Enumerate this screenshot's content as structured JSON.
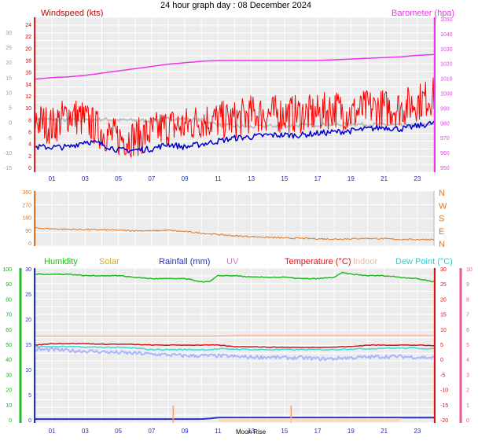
{
  "title": "24 hour graph day : 08 December 2024",
  "colors": {
    "wind_gust": "#ff0000",
    "wind_avg": "#0000cc",
    "wind_dir": "#dd7722",
    "barometer": "#ee33ee",
    "humidity": "#22bb22",
    "solar": "#ccaa33",
    "rainfall": "#2233bb",
    "uv": "#cc77cc",
    "temperature": "#dd1111",
    "indoor": "#f4b8a0",
    "dew_point": "#33dddd",
    "plot_bg": "#ececec",
    "grid": "#ffffff"
  },
  "x_ticks": [
    "01",
    "03",
    "05",
    "07",
    "09",
    "11",
    "13",
    "15",
    "17",
    "19",
    "21",
    "23"
  ],
  "chart_data": [
    {
      "type": "line",
      "name": "wind-barometer",
      "ylabel_left": "Windspeed (kts)",
      "ylabel_right": "Barometer (hpa)",
      "left_ticks": [
        "24",
        "22",
        "20",
        "18",
        "16",
        "14",
        "12",
        "10",
        "8",
        "6",
        "4",
        "2",
        "0"
      ],
      "outer_left_ticks": [
        "30",
        "25",
        "20",
        "15",
        "10",
        "5",
        "0",
        "-5",
        "-10",
        "-15"
      ],
      "right_ticks": [
        "1050",
        "1040",
        "1030",
        "1020",
        "1010",
        "1000",
        "990",
        "980",
        "970",
        "960",
        "950"
      ],
      "ylim": [
        0,
        25
      ],
      "ylim_right": [
        950,
        1050
      ],
      "x": [
        0,
        1,
        2,
        3,
        4,
        5,
        6,
        7,
        8,
        9,
        10,
        11,
        12,
        13,
        14,
        15,
        16,
        17,
        18,
        19,
        20,
        21,
        22,
        23,
        24
      ],
      "series": [
        {
          "name": "Windspeed (kts)",
          "axis": "left",
          "values": [
            8,
            7,
            9,
            8,
            6,
            5,
            5,
            6,
            7,
            7,
            8,
            8,
            8,
            9,
            9,
            9,
            9,
            9,
            10,
            9,
            10,
            10,
            10,
            11,
            12
          ]
        },
        {
          "name": "",
          "axis": "left",
          "values": [
            3.5,
            3.5,
            3.5,
            4.5,
            4.0,
            3.0,
            3.0,
            3.2,
            4.0,
            3.5,
            4.0,
            4.5,
            5.0,
            5.2,
            5.5,
            5.5,
            5.5,
            5.8,
            6.0,
            6.2,
            6.5,
            6.8,
            6.5,
            7.0,
            7.5
          ]
        },
        {
          "name": "Barometer (hpa)",
          "axis": "right",
          "values": [
            1010,
            1011,
            1011.5,
            1012.5,
            1014,
            1015.5,
            1017,
            1018.5,
            1020,
            1021,
            1022,
            1022.5,
            1022.5,
            1022.5,
            1022.5,
            1022.5,
            1022.5,
            1022.5,
            1023,
            1023.5,
            1024,
            1024.5,
            1025,
            1026,
            1026.5
          ]
        },
        {
          "name": "",
          "axis": "outer",
          "values": [
            1.5,
            1.2,
            1.0,
            1.0,
            1.3,
            1.0,
            1.0,
            0.8,
            1.5,
            1.3,
            1.0,
            -0.5,
            -1.0,
            -1.2,
            -1.0,
            -0.8,
            -0.8,
            -0.5,
            -0.5,
            -0.3,
            -0.5,
            -0.5,
            -0.8,
            -0.8,
            -0.5
          ]
        }
      ]
    },
    {
      "type": "line",
      "name": "wind-direction",
      "left_ticks": [
        "360",
        "270",
        "180",
        "90",
        "0"
      ],
      "right_ticks": [
        "N",
        "W",
        "S",
        "E",
        "N"
      ],
      "ylim": [
        0,
        360
      ],
      "x": [
        0,
        1,
        2,
        3,
        4,
        5,
        6,
        7,
        8,
        9,
        10,
        11,
        12,
        13,
        14,
        15,
        16,
        17,
        18,
        19,
        20,
        21,
        22,
        23,
        24
      ],
      "series": [
        {
          "name": "",
          "values": [
            110,
            105,
            102,
            100,
            98,
            95,
            92,
            90,
            95,
            85,
            75,
            65,
            55,
            50,
            45,
            40,
            38,
            35,
            32,
            35,
            38,
            35,
            30,
            30,
            30
          ]
        }
      ]
    },
    {
      "type": "line",
      "name": "temperature-humidity",
      "legend": [
        "Humidity",
        "Solar",
        "Rainfall (mm)",
        "UV",
        "Temperature (°C)",
        "Indoor",
        "Dew Point (°C)"
      ],
      "far_left_ticks": [
        "100",
        "90",
        "80",
        "70",
        "60",
        "50",
        "40",
        "30",
        "20",
        "10",
        "0"
      ],
      "left_ticks": [
        "30",
        "25",
        "20",
        "15",
        "10",
        "5",
        "0"
      ],
      "right_ticks": [
        "30",
        "25",
        "20",
        "15",
        "10",
        "5",
        "0",
        "-5",
        "-10",
        "-15",
        "-20"
      ],
      "far_right_ticks": [
        "10",
        "9",
        "8",
        "7",
        "6",
        "5",
        "4",
        "3",
        "2",
        "1",
        "0"
      ],
      "ylim": [
        -20,
        30
      ],
      "x": [
        0,
        1,
        2,
        3,
        4,
        5,
        6,
        7,
        8,
        9,
        10,
        10.5,
        11,
        12,
        13,
        14,
        15,
        16,
        17,
        18,
        18.5,
        19,
        20,
        21,
        22,
        23,
        24
      ],
      "series": [
        {
          "name": "Humidity",
          "values": [
            97,
            97,
            97,
            96,
            96,
            96,
            95,
            94,
            94,
            94,
            92,
            92,
            96,
            96,
            95,
            95,
            95,
            94,
            94,
            95,
            98,
            97,
            96,
            96,
            95,
            94,
            92
          ]
        },
        {
          "name": "Temperature (°C)",
          "values": [
            5.0,
            5.5,
            5.5,
            5.5,
            5.3,
            5.3,
            5.2,
            5.0,
            5.0,
            5.0,
            5.0,
            5.0,
            5.0,
            4.5,
            4.5,
            4.3,
            4.3,
            4.2,
            4.3,
            4.3,
            4.5,
            4.5,
            5.0,
            5.0,
            5.0,
            5.0,
            4.8
          ]
        },
        {
          "name": "Indoor",
          "values": [
            8.0,
            8.0,
            8.0,
            8.0,
            8.0,
            8.0,
            8.0,
            8.0,
            8.0,
            8.0,
            8.0,
            8.0,
            8.0,
            8.2,
            8.2,
            8.2,
            8.2,
            8.2,
            8.2,
            8.2,
            8.2,
            8.2,
            8.2,
            8.2,
            8.2,
            8.2,
            8.2
          ]
        },
        {
          "name": "Dew Point (°C)",
          "values": [
            4.5,
            4.5,
            4.5,
            4.3,
            4.3,
            4.2,
            4.0,
            3.5,
            3.5,
            3.5,
            3.5,
            3.5,
            3.7,
            3.7,
            3.5,
            3.5,
            3.5,
            3.5,
            3.5,
            3.5,
            3.7,
            3.7,
            3.8,
            4.0,
            4.0,
            4.0,
            3.8
          ]
        },
        {
          "name": "",
          "values": [
            3.5,
            3.5,
            3.2,
            3.0,
            2.8,
            2.5,
            2.3,
            2.0,
            1.8,
            1.5,
            1.5,
            1.5,
            1.5,
            1.2,
            1.0,
            1.0,
            0.8,
            0.8,
            0.5,
            0.5,
            0.8,
            0.8,
            1.0,
            1.2,
            1.2,
            1.0,
            0.8
          ]
        },
        {
          "name": "Rainfall (mm)",
          "values": [
            -19.5,
            -19.5,
            -19.5,
            -19.5,
            -19.5,
            -19.5,
            -19.5,
            -19.5,
            -19.5,
            -19.5,
            -19.5,
            -19.3,
            -19.0,
            -19.0,
            -19.0,
            -19.0,
            -19.0,
            -19.0,
            -19.0,
            -19.0,
            -19.0,
            -19.0,
            -19.0,
            -19.0,
            -19.0,
            -19.0,
            -19.0
          ]
        }
      ],
      "annotation": "Moon Rise"
    }
  ]
}
